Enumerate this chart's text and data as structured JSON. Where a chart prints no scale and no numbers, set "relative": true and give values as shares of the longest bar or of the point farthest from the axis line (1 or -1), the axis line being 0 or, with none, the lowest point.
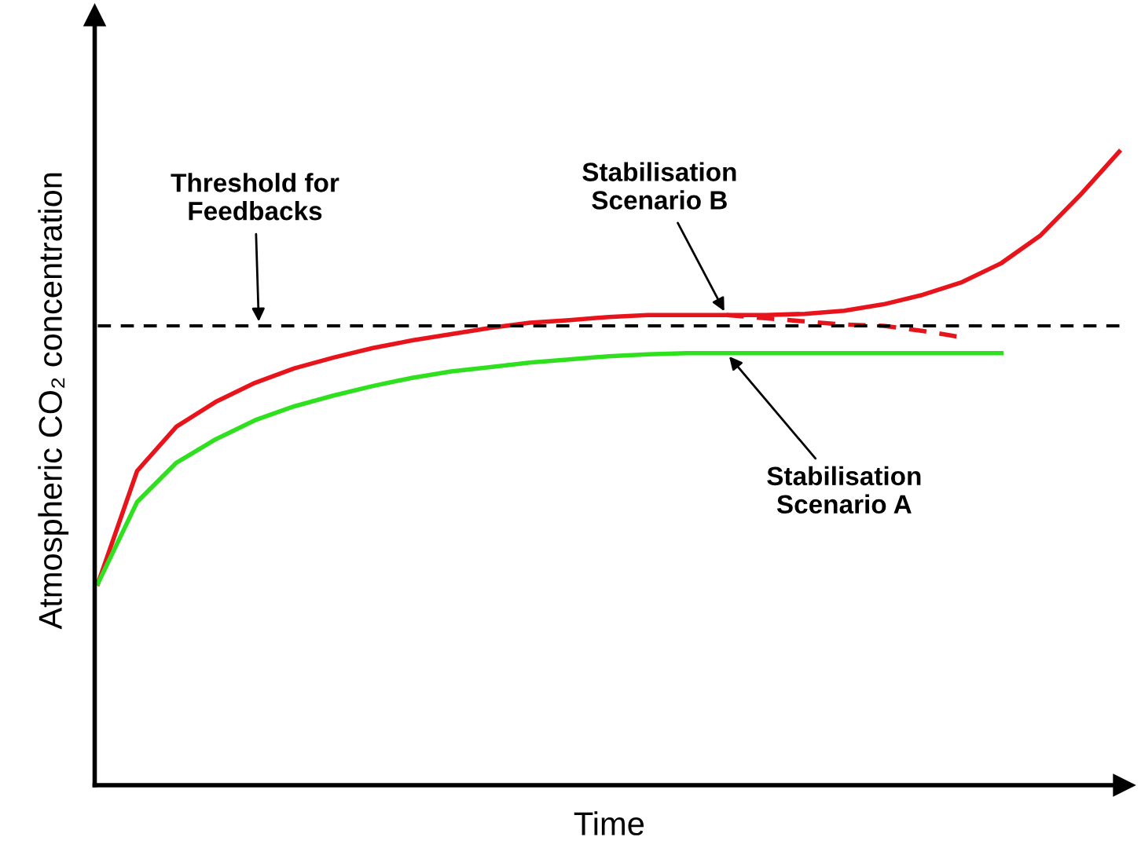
{
  "chart_data": {
    "type": "line",
    "relative": true,
    "xlabel": "Time",
    "ylabel": "Atmospheric CO₂ concentration",
    "categories": [
      null,
      null,
      null,
      null,
      null,
      null,
      null,
      null,
      null,
      null,
      null,
      null,
      null,
      null,
      null,
      null,
      null,
      null,
      null,
      null,
      null,
      null,
      null,
      null,
      null,
      null,
      null
    ],
    "series": [
      {
        "color": "#e8141c",
        "values": [
          0.318,
          0.496,
          0.566,
          0.605,
          0.635,
          0.658,
          0.675,
          0.69,
          0.702,
          0.712,
          0.722,
          0.73,
          0.734,
          0.739,
          0.742,
          0.742,
          0.742,
          0.742,
          0.744,
          0.749,
          0.759,
          0.774,
          0.794,
          0.824,
          0.868,
          0.931,
          1
        ]
      },
      {
        "color": "#e8141c",
        "line_style": "dashed",
        "values": [
          null,
          null,
          null,
          null,
          null,
          null,
          null,
          null,
          null,
          null,
          null,
          null,
          null,
          null,
          null,
          null,
          0.742,
          0.737,
          0.732,
          0.727,
          0.725,
          0.717,
          0.707,
          null,
          null,
          null,
          null
        ]
      },
      {
        "color": "#2ee01e",
        "values": [
          0.318,
          0.447,
          0.509,
          0.546,
          0.576,
          0.598,
          0.615,
          0.63,
          0.643,
          0.653,
          0.66,
          0.667,
          0.672,
          0.677,
          0.68,
          0.682,
          0.682,
          0.682,
          0.682,
          0.682,
          0.682,
          0.682,
          0.682,
          0.682,
          null,
          null,
          null
        ]
      }
    ],
    "ref_lines": [
      {
        "axis": "y",
        "value": 0.725,
        "label": "Threshold for Feedbacks",
        "color": "#000000",
        "line_style": "dashed"
      }
    ],
    "annotations": [
      "Stabilisation Scenario B",
      "Stabilisation Scenario A"
    ],
    "legend": false,
    "marker": "none"
  }
}
